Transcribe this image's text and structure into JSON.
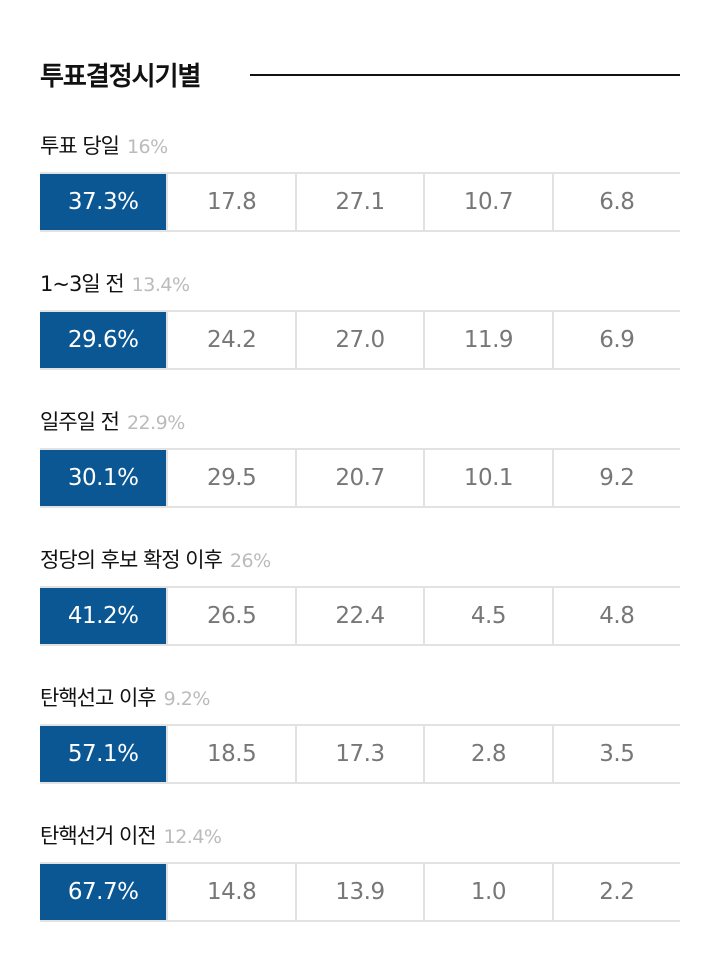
{
  "title": "투표결정시기별",
  "accent": "#0b5794",
  "groups": [
    {
      "label": "투표 당일",
      "share": "16%",
      "values": [
        "37.3%",
        "17.8",
        "27.1",
        "10.7",
        "6.8"
      ]
    },
    {
      "label": "1~3일 전",
      "share": "13.4%",
      "values": [
        "29.6%",
        "24.2",
        "27.0",
        "11.9",
        "6.9"
      ]
    },
    {
      "label": "일주일 전",
      "share": "22.9%",
      "values": [
        "30.1%",
        "29.5",
        "20.7",
        "10.1",
        "9.2"
      ]
    },
    {
      "label": "정당의 후보 확정 이후",
      "share": "26%",
      "values": [
        "41.2%",
        "26.5",
        "22.4",
        "4.5",
        "4.8"
      ]
    },
    {
      "label": "탄핵선고 이후",
      "share": "9.2%",
      "values": [
        "57.1%",
        "18.5",
        "17.3",
        "2.8",
        "3.5"
      ]
    },
    {
      "label": "탄핵선거 이전",
      "share": "12.4%",
      "values": [
        "67.7%",
        "14.8",
        "13.9",
        "1.0",
        "2.2"
      ]
    }
  ]
}
